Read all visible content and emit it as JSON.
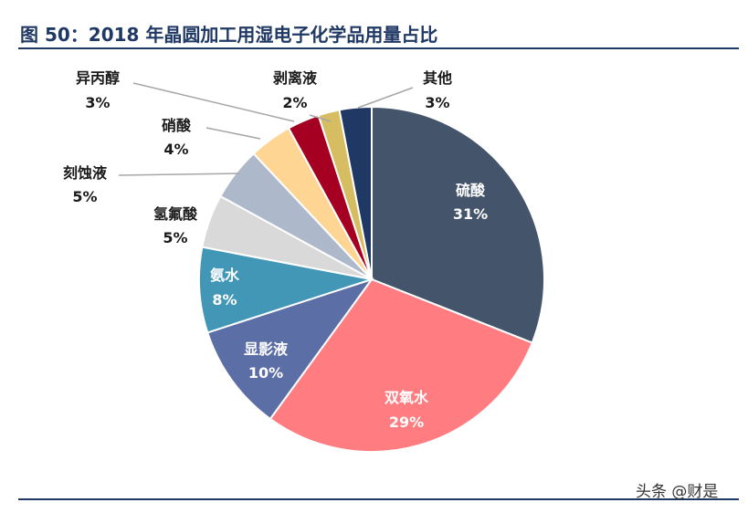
{
  "title": "图 50：2018 年晶圆加工用湿电子化学品用量占比",
  "watermark": "头条 @财是",
  "chart_data": {
    "type": "pie",
    "slices": [
      {
        "label": "硫酸",
        "value": 31,
        "pct": "31%",
        "color": "#44546a",
        "placement": "inside"
      },
      {
        "label": "双氧水",
        "value": 29,
        "pct": "29%",
        "color": "#ff7c80",
        "placement": "inside"
      },
      {
        "label": "显影液",
        "value": 10,
        "pct": "10%",
        "color": "#5b6fa6",
        "placement": "inside"
      },
      {
        "label": "氨水",
        "value": 8,
        "pct": "8%",
        "color": "#4297b7",
        "placement": "inside"
      },
      {
        "label": "氢氟酸",
        "value": 5,
        "pct": "5%",
        "color": "#d9d9d9",
        "placement": "outside"
      },
      {
        "label": "刻蚀液",
        "value": 5,
        "pct": "5%",
        "color": "#adb9ca",
        "placement": "outside-leader"
      },
      {
        "label": "硝酸",
        "value": 4,
        "pct": "4%",
        "color": "#ffd594",
        "placement": "outside-leader"
      },
      {
        "label": "异丙醇",
        "value": 3,
        "pct": "3%",
        "color": "#a50021",
        "placement": "outside-leader"
      },
      {
        "label": "剥离液",
        "value": 2,
        "pct": "2%",
        "color": "#d6bd62",
        "placement": "outside-leader"
      },
      {
        "label": "其他",
        "value": 3,
        "pct": "3%",
        "color": "#203864",
        "placement": "outside-leader"
      }
    ],
    "start": "12 o'clock",
    "direction": "clockwise",
    "legend": "none"
  }
}
